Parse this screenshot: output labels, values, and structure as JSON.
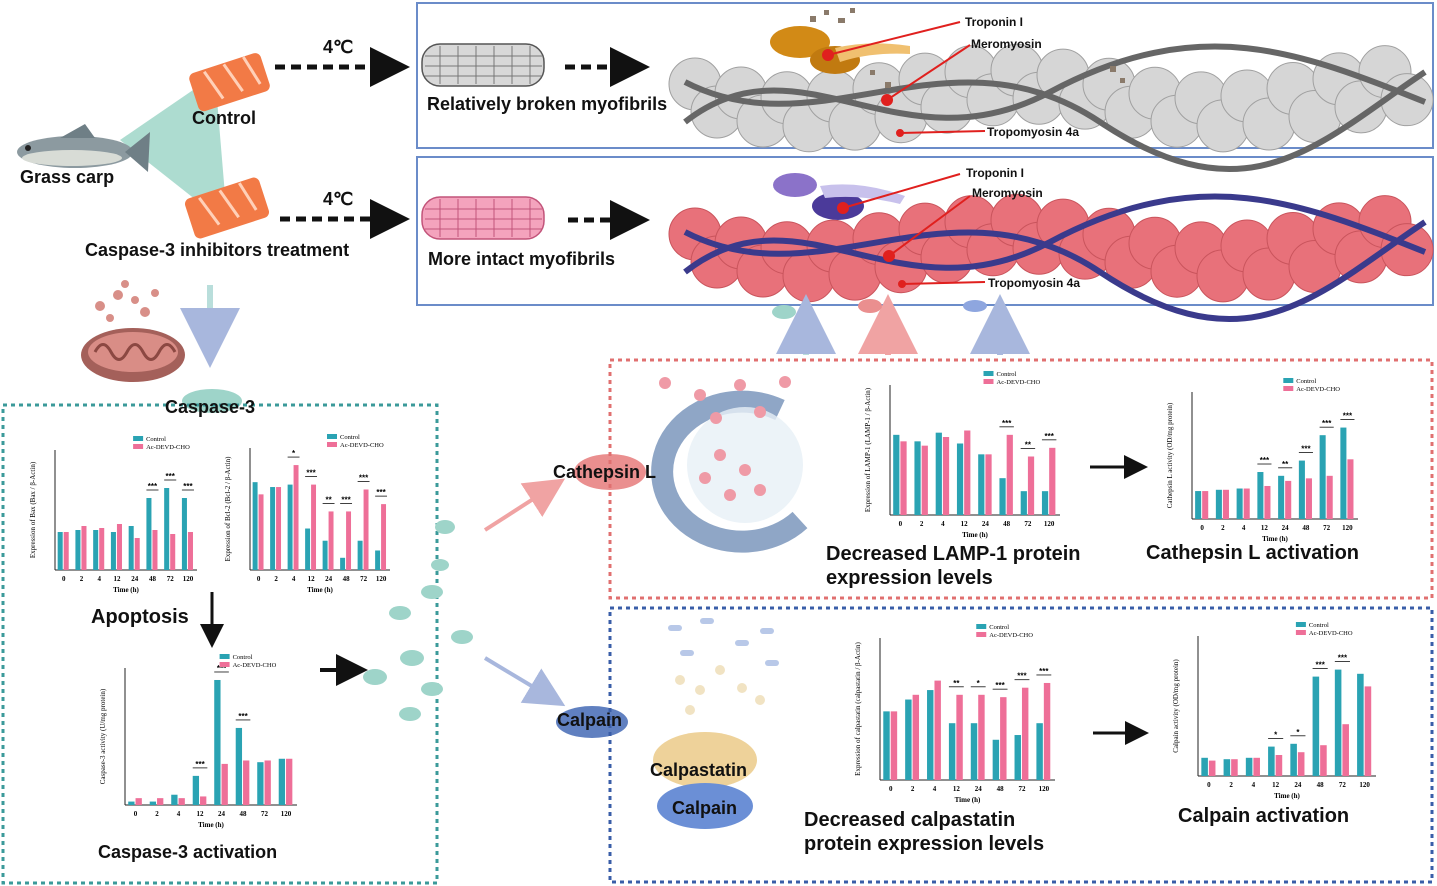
{
  "labels": {
    "fish": "Grass carp",
    "control": "Control",
    "treatment": "Caspase-3 inhibitors treatment",
    "temp_top": "4℃",
    "temp_bottom": "4℃",
    "broken": "Relatively broken myofibrils",
    "intact": "More intact myofibrils",
    "caspase3": "Caspase-3",
    "apoptosis": "Apoptosis",
    "caspase_activation": "Caspase-3 activation",
    "cathepsin": "Cathepsin L",
    "calpain": "Calpain",
    "calpastatin_blob": "Calpastatin",
    "calpain_blob": "Calpain",
    "lamp_text": "Decreased LAMP-1 protein expression levels",
    "cathepsin_activation": "Cathepsin L activation",
    "calpastatin_text": "Decreased calpastatin protein expression levels",
    "calpain_activation": "Calpain activation"
  },
  "proteins_top": {
    "a": "Troponin I",
    "b": "Meromyosin",
    "c": "Tropomyosin 4a"
  },
  "proteins_bottom": {
    "a": "Troponin I",
    "b": "Meromyosin",
    "c": "Tropomyosin 4a"
  },
  "colors": {
    "control": "#2aa3b3",
    "treatment": "#ee6f98",
    "teal_box": "#3b9a9a",
    "red_box": "#e07070",
    "blue_box": "#3a5ea8"
  },
  "chart_data": [
    {
      "id": "bax",
      "type": "bar",
      "ylabel": "Expression of Bax (Bax / β-Actin)",
      "xlabel": "Time (h)",
      "categories": [
        "0",
        "2",
        "4",
        "12",
        "24",
        "48",
        "72",
        "120"
      ],
      "ylim": [
        0,
        0.6
      ],
      "series": [
        {
          "name": "Control",
          "values": [
            0.19,
            0.2,
            0.2,
            0.19,
            0.22,
            0.36,
            0.41,
            0.36
          ]
        },
        {
          "name": "Ac-DEVD-CHO",
          "values": [
            0.19,
            0.22,
            0.21,
            0.23,
            0.16,
            0.2,
            0.18,
            0.19
          ]
        }
      ],
      "sig": [
        "",
        "",
        "",
        "",
        "",
        "***",
        "***",
        "***"
      ]
    },
    {
      "id": "bcl2",
      "type": "bar",
      "ylabel": "Expression of Bcl-2 (Bcl-2 / β-Actin)",
      "xlabel": "Time (h)",
      "categories": [
        "0",
        "2",
        "4",
        "12",
        "24",
        "48",
        "72",
        "120"
      ],
      "ylim": [
        0,
        0.5
      ],
      "series": [
        {
          "name": "Control",
          "values": [
            0.36,
            0.34,
            0.35,
            0.17,
            0.12,
            0.05,
            0.12,
            0.08
          ]
        },
        {
          "name": "Ac-DEVD-CHO",
          "values": [
            0.31,
            0.34,
            0.43,
            0.35,
            0.24,
            0.24,
            0.33,
            0.27
          ]
        }
      ],
      "sig": [
        "",
        "",
        "*",
        "***",
        "**",
        "***",
        "***",
        "***"
      ]
    },
    {
      "id": "caspase",
      "type": "bar",
      "ylabel": "Caspase-3 activity (U/mg protein)",
      "xlabel": "Time (h)",
      "categories": [
        "0",
        "2",
        "4",
        "12",
        "24",
        "48",
        "72",
        "120"
      ],
      "ylim": [
        0,
        4
      ],
      "series": [
        {
          "name": "Control",
          "values": [
            0.1,
            0.1,
            0.3,
            0.85,
            3.65,
            2.25,
            1.25,
            1.35
          ]
        },
        {
          "name": "Ac-DEVD-CHO",
          "values": [
            0.2,
            0.2,
            0.2,
            0.25,
            1.2,
            1.3,
            1.3,
            1.35
          ]
        }
      ],
      "sig": [
        "",
        "",
        "",
        "***",
        "***",
        "***",
        "",
        ""
      ]
    },
    {
      "id": "lamp",
      "type": "bar",
      "ylabel": "Expression of LAMP-1 (LAMP-1 / β-Actin)",
      "xlabel": "Time (h)",
      "categories": [
        "0",
        "2",
        "4",
        "12",
        "24",
        "48",
        "72",
        "120"
      ],
      "ylim": [
        0,
        0.6
      ],
      "series": [
        {
          "name": "Control",
          "values": [
            0.37,
            0.34,
            0.38,
            0.33,
            0.28,
            0.17,
            0.11,
            0.11
          ]
        },
        {
          "name": "Ac-DEVD-CHO",
          "values": [
            0.34,
            0.32,
            0.36,
            0.39,
            0.28,
            0.37,
            0.27,
            0.31
          ]
        }
      ],
      "sig": [
        "",
        "",
        "",
        "",
        "",
        "***",
        "**",
        "***"
      ]
    },
    {
      "id": "cathepsin",
      "type": "bar",
      "ylabel": "Cathepsin L activity (OD/mg protein)",
      "xlabel": "Time (h)",
      "categories": [
        "0",
        "2",
        "4",
        "12",
        "24",
        "48",
        "72",
        "120"
      ],
      "ylim": [
        0,
        5
      ],
      "series": [
        {
          "name": "Control",
          "values": [
            1.1,
            1.15,
            1.2,
            1.85,
            1.7,
            2.3,
            3.3,
            3.6
          ]
        },
        {
          "name": "Ac-DEVD-CHO",
          "values": [
            1.1,
            1.15,
            1.2,
            1.3,
            1.5,
            1.6,
            1.7,
            2.35
          ]
        }
      ],
      "sig": [
        "",
        "",
        "",
        "***",
        "**",
        "***",
        "***",
        "***"
      ]
    },
    {
      "id": "calpastatin",
      "type": "bar",
      "ylabel": "Expression of calpastatin (calpastatin / β-Actin)",
      "xlabel": "Time (h)",
      "categories": [
        "0",
        "2",
        "4",
        "12",
        "24",
        "48",
        "72",
        "120"
      ],
      "ylim": [
        0,
        0.6
      ],
      "series": [
        {
          "name": "Control",
          "values": [
            0.29,
            0.34,
            0.38,
            0.24,
            0.24,
            0.17,
            0.19,
            0.24
          ]
        },
        {
          "name": "Ac-DEVD-CHO",
          "values": [
            0.29,
            0.36,
            0.42,
            0.36,
            0.36,
            0.35,
            0.39,
            0.41
          ]
        }
      ],
      "sig": [
        "",
        "",
        "",
        "**",
        "*",
        "***",
        "***",
        "***"
      ]
    },
    {
      "id": "calpain",
      "type": "bar",
      "ylabel": "Calpain activity (OD/mg protein)",
      "xlabel": "Time (h)",
      "categories": [
        "0",
        "2",
        "4",
        "12",
        "24",
        "48",
        "72",
        "120"
      ],
      "ylim": [
        120,
        220
      ],
      "series": [
        {
          "name": "Control",
          "values": [
            133,
            132,
            133,
            141,
            143,
            191,
            196,
            193
          ]
        },
        {
          "name": "Ac-DEVD-CHO",
          "values": [
            131,
            132,
            133,
            135,
            137,
            142,
            157,
            184
          ]
        }
      ],
      "sig": [
        "",
        "",
        "",
        "*",
        "*",
        "***",
        "***",
        ""
      ]
    }
  ]
}
